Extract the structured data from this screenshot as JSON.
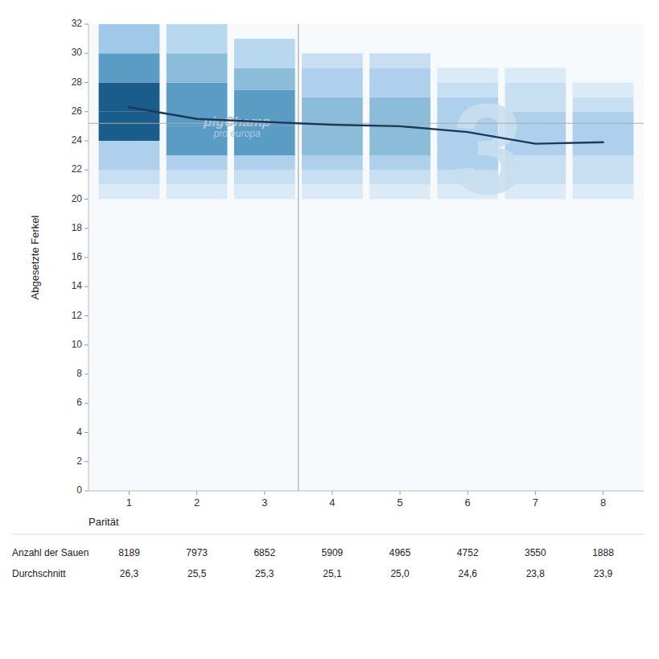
{
  "chart_data": {
    "type": "line",
    "x": [
      1,
      2,
      3,
      4,
      5,
      6,
      7,
      8
    ],
    "values": [
      26.3,
      25.5,
      25.3,
      25.1,
      25.0,
      24.6,
      23.8,
      23.9
    ],
    "color": "#1a3a5c",
    "xlabel": "Parität",
    "ylabel": "Abgesetzte Ferkel",
    "xlim": [
      0.4,
      8.6
    ],
    "xticks": [
      1,
      2,
      3,
      4,
      5,
      6,
      7,
      8
    ],
    "ylim": [
      0,
      32
    ],
    "yticks": [
      0,
      2,
      4,
      6,
      8,
      10,
      12,
      14,
      16,
      18,
      20,
      22,
      24,
      26,
      28,
      30,
      32
    ],
    "grid": false,
    "hline": {
      "value": 25.2,
      "color": "#aaaaaa"
    },
    "vline": {
      "value": 3.5,
      "color": "#999999"
    },
    "distribution": [
      {
        "x": 1,
        "ranges": [
          [
            20.0,
            21.0,
            "#daeaf6"
          ],
          [
            21.0,
            22.0,
            "#c8dff2"
          ],
          [
            22.0,
            24.0,
            "#afd0ec"
          ],
          [
            24.0,
            26.0,
            "#1a5c8a"
          ],
          [
            26.0,
            28.0,
            "#1a5c8a"
          ],
          [
            28.0,
            30.0,
            "#5b9cc4"
          ],
          [
            30.0,
            32.0,
            "#a0c8e8"
          ]
        ]
      },
      {
        "x": 2,
        "ranges": [
          [
            20.0,
            21.0,
            "#daeaf6"
          ],
          [
            21.0,
            22.0,
            "#c8dff2"
          ],
          [
            22.0,
            23.0,
            "#afd0ec"
          ],
          [
            23.0,
            25.0,
            "#5b9cc4"
          ],
          [
            25.0,
            28.0,
            "#5b9cc4"
          ],
          [
            28.0,
            30.0,
            "#8bbcda"
          ],
          [
            30.0,
            32.0,
            "#b8d8ef"
          ]
        ]
      },
      {
        "x": 3,
        "ranges": [
          [
            20.0,
            21.0,
            "#daeaf6"
          ],
          [
            21.0,
            22.0,
            "#c8dff2"
          ],
          [
            22.0,
            23.0,
            "#afd0ec"
          ],
          [
            23.0,
            25.0,
            "#5b9cc4"
          ],
          [
            25.0,
            27.5,
            "#5b9cc4"
          ],
          [
            27.5,
            29.0,
            "#8bbcda"
          ],
          [
            29.0,
            31.0,
            "#b8d8ef"
          ]
        ]
      },
      {
        "x": 4,
        "ranges": [
          [
            20.0,
            21.0,
            "#daeaf6"
          ],
          [
            21.0,
            22.0,
            "#c8dff2"
          ],
          [
            22.0,
            23.0,
            "#afd0ec"
          ],
          [
            23.0,
            25.0,
            "#8bbcda"
          ],
          [
            25.0,
            27.0,
            "#8bbcda"
          ],
          [
            27.0,
            29.0,
            "#afd0ec"
          ],
          [
            29.0,
            30.0,
            "#c8dff2"
          ]
        ]
      },
      {
        "x": 5,
        "ranges": [
          [
            20.0,
            21.0,
            "#daeaf6"
          ],
          [
            21.0,
            22.0,
            "#c8dff2"
          ],
          [
            22.0,
            23.0,
            "#afd0ec"
          ],
          [
            23.0,
            25.0,
            "#8bbcda"
          ],
          [
            25.0,
            27.0,
            "#8bbcda"
          ],
          [
            27.0,
            29.0,
            "#afd0ec"
          ],
          [
            29.0,
            30.0,
            "#c8dff2"
          ]
        ]
      },
      {
        "x": 6,
        "ranges": [
          [
            20.0,
            21.0,
            "#daeaf6"
          ],
          [
            21.0,
            22.0,
            "#c8dff2"
          ],
          [
            22.0,
            24.5,
            "#afd0ec"
          ],
          [
            24.5,
            27.0,
            "#afd0ec"
          ],
          [
            27.0,
            28.0,
            "#c8dff2"
          ],
          [
            28.0,
            29.0,
            "#daeaf6"
          ]
        ]
      },
      {
        "x": 7,
        "ranges": [
          [
            20.0,
            21.0,
            "#daeaf6"
          ],
          [
            21.0,
            23.0,
            "#c8dff2"
          ],
          [
            23.0,
            26.0,
            "#afd0ec"
          ],
          [
            26.0,
            28.0,
            "#c8dff2"
          ],
          [
            28.0,
            29.0,
            "#daeaf6"
          ]
        ]
      },
      {
        "x": 8,
        "ranges": [
          [
            20.0,
            21.0,
            "#daeaf6"
          ],
          [
            21.0,
            23.0,
            "#c8dff2"
          ],
          [
            23.0,
            26.0,
            "#afd0ec"
          ],
          [
            26.0,
            27.0,
            "#c8dff2"
          ],
          [
            27.0,
            28.0,
            "#daeaf6"
          ]
        ]
      }
    ],
    "annotations": [
      {
        "text": "pigChamp",
        "x": 2.1,
        "y": 25.0,
        "color": "#aac8e0"
      },
      {
        "text": "pro europa",
        "x": 2.25,
        "y": 24.3,
        "color": "#aac8e0"
      },
      {
        "text": "3",
        "x": 6.3,
        "y": 23.5,
        "color": "#c8dff0"
      }
    ],
    "table": [
      {
        "label": "Anzahl der Sauen",
        "values": [
          8189,
          7973,
          6852,
          5909,
          4965,
          4752,
          3550,
          1888
        ]
      },
      {
        "label": "Durchschnitt",
        "values": [
          26.3,
          25.5,
          25.3,
          25.1,
          25.0,
          24.6,
          23.8,
          23.9
        ],
        "value_labels": [
          "26,3",
          "25,5",
          "25,3",
          "25,1",
          "25,0",
          "24,6",
          "23,8",
          "23,9"
        ]
      }
    ]
  }
}
